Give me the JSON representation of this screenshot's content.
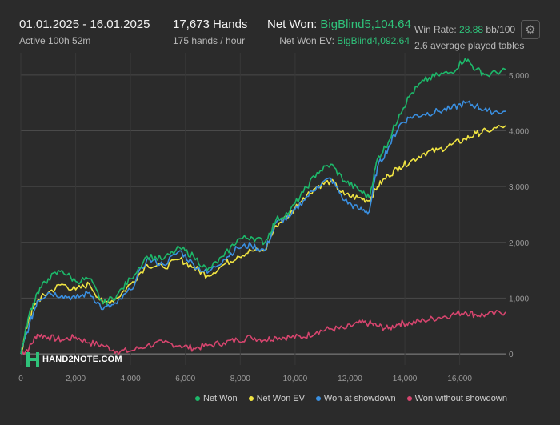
{
  "header": {
    "date_range": "01.01.2025 - 16.01.2025",
    "active_time": "Active 100h 52m",
    "hands": "17,673 Hands",
    "hands_per_hour": "175 hands / hour",
    "net_won_label": "Net Won:",
    "net_won_value": "BigBlind5,104.64",
    "net_won_ev_label": "Net Won  EV:",
    "net_won_ev_value": "BigBlind4,092.64",
    "win_rate_label": "Win Rate:",
    "win_rate_value": "28.88",
    "win_rate_unit": "bb/100",
    "avg_tables": "2.6 average played tables"
  },
  "settings_icon": "gear-icon",
  "logo": {
    "text": "HAND2NOTE.COM"
  },
  "colors": {
    "net_won": "#1db86a",
    "net_won_ev": "#f0e442",
    "won_showdown": "#3a8fe0",
    "won_no_showdown": "#d6456e",
    "accent_green": "#2fc27a"
  },
  "chart_data": {
    "type": "line",
    "xlim": [
      0,
      17673
    ],
    "ylim": [
      -200,
      5400
    ],
    "x_ticks": [
      0,
      2000,
      4000,
      6000,
      8000,
      10000,
      12000,
      14000,
      16000
    ],
    "x_tick_labels": [
      "0",
      "2,000",
      "4,000",
      "6,000",
      "8,000",
      "10,000",
      "12,000",
      "14,000",
      "16,000"
    ],
    "y_ticks": [
      0,
      1000,
      2000,
      3000,
      4000,
      5000
    ],
    "y_tick_labels": [
      "0",
      "1,000",
      "2,000",
      "3,000",
      "4,000",
      "5,000"
    ],
    "grid": true,
    "legend_position": "bottom",
    "series": [
      {
        "name": "Net Won",
        "color_key": "net_won",
        "x": [
          0,
          300,
          600,
          1000,
          1500,
          2000,
          2500,
          3000,
          3500,
          4000,
          4600,
          5200,
          5800,
          6300,
          6800,
          7400,
          7900,
          8400,
          8900,
          9300,
          9800,
          10300,
          10800,
          11300,
          11800,
          12300,
          12700,
          13000,
          13400,
          13800,
          14200,
          14700,
          15200,
          15700,
          16200,
          16600,
          17000,
          17673
        ],
        "values": [
          0,
          700,
          1100,
          1350,
          1500,
          1300,
          1350,
          900,
          1050,
          1350,
          1750,
          1700,
          1900,
          1750,
          1500,
          1750,
          2050,
          2100,
          2000,
          2400,
          2550,
          2900,
          3250,
          3400,
          3100,
          2950,
          2800,
          3500,
          3800,
          4300,
          4650,
          4900,
          5000,
          5050,
          5300,
          5100,
          5000,
          5100
        ]
      },
      {
        "name": "Net Won  EV",
        "color_key": "net_won_ev",
        "x": [
          0,
          300,
          600,
          1000,
          1500,
          2000,
          2500,
          3000,
          3500,
          4000,
          4600,
          5200,
          5800,
          6300,
          6800,
          7400,
          7900,
          8400,
          8900,
          9300,
          9800,
          10300,
          10800,
          11300,
          11800,
          12300,
          12700,
          13000,
          13400,
          13800,
          14200,
          14700,
          15200,
          15700,
          16200,
          16600,
          17000,
          17673
        ],
        "values": [
          0,
          650,
          950,
          1100,
          1250,
          1150,
          1250,
          900,
          1000,
          1250,
          1600,
          1550,
          1700,
          1550,
          1400,
          1600,
          1750,
          1850,
          1850,
          2300,
          2500,
          2800,
          3000,
          3100,
          2850,
          2800,
          2750,
          3000,
          3200,
          3350,
          3450,
          3600,
          3650,
          3750,
          3850,
          3950,
          4000,
          4093
        ]
      },
      {
        "name": "Won at showdown",
        "color_key": "won_showdown",
        "x": [
          0,
          300,
          600,
          1000,
          1500,
          2000,
          2500,
          3000,
          3500,
          4000,
          4600,
          5200,
          5800,
          6300,
          6800,
          7400,
          7900,
          8400,
          8900,
          9300,
          9800,
          10300,
          10800,
          11300,
          11800,
          12300,
          12700,
          13000,
          13400,
          13800,
          14200,
          14700,
          15200,
          15700,
          16200,
          16600,
          17000,
          17673
        ],
        "values": [
          0,
          500,
          950,
          1100,
          1050,
          1000,
          1100,
          800,
          900,
          1150,
          1700,
          1600,
          1850,
          1600,
          1450,
          1700,
          1900,
          1950,
          1850,
          2350,
          2450,
          2750,
          3000,
          3150,
          2750,
          2600,
          2550,
          3350,
          3700,
          4100,
          4250,
          4300,
          4350,
          4400,
          4500,
          4450,
          4350,
          4350
        ]
      },
      {
        "name": "Won without showdown",
        "color_key": "won_no_showdown",
        "x": [
          0,
          300,
          600,
          1000,
          1500,
          2000,
          2500,
          3000,
          3500,
          4000,
          4600,
          5200,
          5800,
          6300,
          6800,
          7400,
          7900,
          8400,
          8900,
          9300,
          9800,
          10300,
          10800,
          11300,
          11800,
          12300,
          12700,
          13000,
          13400,
          13800,
          14200,
          14700,
          15200,
          15700,
          16200,
          16600,
          17000,
          17673
        ],
        "values": [
          0,
          100,
          350,
          300,
          250,
          300,
          200,
          150,
          50,
          50,
          150,
          200,
          150,
          100,
          150,
          200,
          250,
          300,
          250,
          300,
          300,
          300,
          400,
          450,
          450,
          550,
          550,
          500,
          450,
          550,
          550,
          600,
          650,
          700,
          750,
          700,
          700,
          750
        ]
      }
    ]
  },
  "legend": [
    {
      "label": "Net Won",
      "color_key": "net_won"
    },
    {
      "label": "Net Won  EV",
      "color_key": "net_won_ev"
    },
    {
      "label": "Won at showdown",
      "color_key": "won_showdown"
    },
    {
      "label": "Won without showdown",
      "color_key": "won_no_showdown"
    }
  ]
}
